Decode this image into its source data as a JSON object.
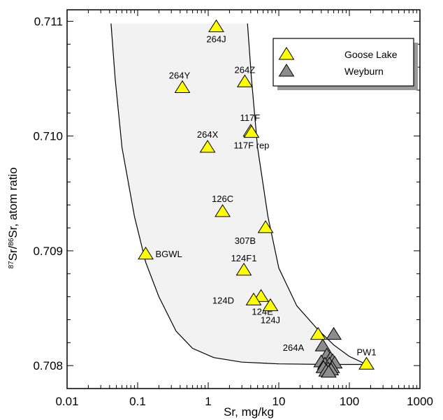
{
  "chart_data": {
    "type": "scatter",
    "xlabel": "Sr, mg/kg",
    "ylabel": {
      "sup1": "87",
      "mid1": "Sr/",
      "sup2": "86",
      "mid2": "Sr, atom ratio"
    },
    "xscale": "log",
    "xlim": [
      0.01,
      1000
    ],
    "ylim": [
      0.7078,
      0.7111
    ],
    "x_ticks": [
      {
        "value": 0.01,
        "label": "0.01"
      },
      {
        "value": 0.1,
        "label": "0.1"
      },
      {
        "value": 1,
        "label": "1"
      },
      {
        "value": 10,
        "label": "10"
      },
      {
        "value": 100,
        "label": "100"
      },
      {
        "value": 1000,
        "label": "1000"
      }
    ],
    "y_ticks": [
      {
        "value": 0.708,
        "label": "0.708"
      },
      {
        "value": 0.709,
        "label": "0.709"
      },
      {
        "value": 0.71,
        "label": "0.710"
      },
      {
        "value": 0.711,
        "label": "0.711"
      }
    ],
    "grid": false,
    "legend_position": "top-right",
    "colors": {
      "goose_lake": "#ffff00",
      "weyburn": "#8c8c8c",
      "envelope_fill": "#f2f2f2"
    },
    "series": [
      {
        "name": "Goose Lake",
        "points": [
          {
            "x": 1.3,
            "y": 0.71095,
            "label": "264J"
          },
          {
            "x": 3.3,
            "y": 0.71047,
            "label": "264Z"
          },
          {
            "x": 0.43,
            "y": 0.71042,
            "label": "264Y"
          },
          {
            "x": 4.0,
            "y": 0.71004,
            "label": "117F"
          },
          {
            "x": 4.1,
            "y": 0.71003,
            "label": "117F rep"
          },
          {
            "x": 0.98,
            "y": 0.7099,
            "label": "264X"
          },
          {
            "x": 1.6,
            "y": 0.70934,
            "label": "126C"
          },
          {
            "x": 6.5,
            "y": 0.7092,
            "label": "307B"
          },
          {
            "x": 0.13,
            "y": 0.70897,
            "label": "BGWL"
          },
          {
            "x": 3.2,
            "y": 0.70883,
            "label": "124F1"
          },
          {
            "x": 5.6,
            "y": 0.7086,
            "label": "124E"
          },
          {
            "x": 4.4,
            "y": 0.70857,
            "label": "124D"
          },
          {
            "x": 7.6,
            "y": 0.70852,
            "label": "124J"
          },
          {
            "x": 36,
            "y": 0.70827,
            "label": "264A"
          },
          {
            "x": 175,
            "y": 0.70801,
            "label": "PW1"
          }
        ]
      },
      {
        "name": "Weyburn",
        "points": [
          {
            "x": 60,
            "y": 0.70827
          },
          {
            "x": 42,
            "y": 0.70817
          },
          {
            "x": 48,
            "y": 0.70809
          },
          {
            "x": 54,
            "y": 0.70806
          },
          {
            "x": 40,
            "y": 0.70803
          },
          {
            "x": 58,
            "y": 0.70804
          },
          {
            "x": 45,
            "y": 0.70801
          },
          {
            "x": 52,
            "y": 0.70801
          },
          {
            "x": 62,
            "y": 0.70802
          },
          {
            "x": 43,
            "y": 0.70798
          },
          {
            "x": 50,
            "y": 0.70797
          },
          {
            "x": 57,
            "y": 0.70798
          },
          {
            "x": 47,
            "y": 0.70795
          },
          {
            "x": 55,
            "y": 0.70796
          },
          {
            "x": 51,
            "y": 0.70794
          }
        ]
      }
    ],
    "envelope_left": [
      [
        0.042,
        0.71098
      ],
      [
        0.048,
        0.7105
      ],
      [
        0.06,
        0.7099
      ],
      [
        0.09,
        0.7093
      ],
      [
        0.13,
        0.7089
      ],
      [
        0.2,
        0.7086
      ],
      [
        0.35,
        0.7083
      ],
      [
        0.6,
        0.70815
      ],
      [
        1.2,
        0.70807
      ],
      [
        3,
        0.70803
      ],
      [
        10,
        0.708015
      ],
      [
        50,
        0.70801
      ],
      [
        175,
        0.70801
      ]
    ],
    "envelope_right": [
      [
        175,
        0.70801
      ],
      [
        100,
        0.70808
      ],
      [
        60,
        0.70818
      ],
      [
        35,
        0.70832
      ],
      [
        18,
        0.70852
      ],
      [
        10,
        0.70885
      ],
      [
        7,
        0.7093
      ],
      [
        5,
        0.7099
      ],
      [
        4.1,
        0.7105
      ],
      [
        3.6,
        0.71098
      ]
    ]
  }
}
